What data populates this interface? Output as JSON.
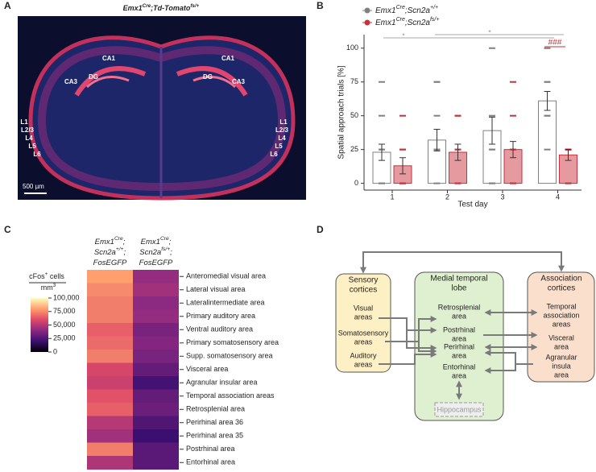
{
  "panel_a": {
    "letter": "A",
    "title": [
      "Emx1",
      "Cre",
      ";Td-Tomato",
      "fs/+"
    ],
    "labels": [
      "CA1",
      "CA1",
      "DG",
      "DG",
      "CA3",
      "CA3",
      "L1",
      "L2/3",
      "L4",
      "L5",
      "L6",
      "L1",
      "L2/3",
      "L4",
      "L5",
      "L6"
    ],
    "scale_bar": "500 µm"
  },
  "chart_data": [
    {
      "panel": "B",
      "type": "bar",
      "x_label": "Test day",
      "y_label": "Spatial approach trials [%]",
      "categories": [
        "1",
        "2",
        "3",
        "4"
      ],
      "ylim": [
        -5,
        110
      ],
      "yticks": [
        0,
        25,
        50,
        75,
        100
      ],
      "series": [
        {
          "name": [
            "Emx1",
            "Cre",
            ";Scn2a",
            "+/+"
          ],
          "color": "#808080",
          "fill": "#ffffff",
          "values": [
            23,
            32,
            39,
            61
          ],
          "errors": [
            6,
            8,
            10,
            7
          ],
          "points": [
            [
              0,
              25,
              25,
              50,
              75,
              0
            ],
            [
              0,
              25,
              50,
              75,
              75,
              25
            ],
            [
              0,
              25,
              25,
              50,
              100,
              0
            ],
            [
              25,
              50,
              50,
              75,
              75,
              100
            ]
          ]
        },
        {
          "name": [
            "Emx1",
            "Cre",
            ";Scn2a",
            "fs/+"
          ],
          "color": "#c8323c",
          "fill": "#e59aa0",
          "values": [
            13,
            23,
            25,
            21
          ],
          "errors": [
            6,
            6,
            6,
            4
          ],
          "points": [
            [
              0,
              0,
              0,
              25,
              25,
              50
            ],
            [
              0,
              25,
              25,
              50,
              50,
              0
            ],
            [
              0,
              25,
              25,
              50,
              75,
              0
            ],
            [
              0,
              25,
              25,
              25,
              0,
              25
            ]
          ]
        }
      ],
      "annotations": [
        "*",
        "*",
        "###"
      ]
    },
    {
      "panel": "C",
      "type": "heatmap",
      "columns": [
        [
          [
            "Emx1",
            "Cre",
            ";"
          ],
          [
            "Scn2a",
            "+/+",
            ";"
          ],
          [
            "FosEGFP"
          ]
        ],
        [
          [
            "Emx1",
            "Cre",
            ";"
          ],
          [
            "Scn2a",
            "fs/+",
            ";"
          ],
          [
            "FosEGFP"
          ]
        ]
      ],
      "rows": [
        "Anteromedial visual area",
        "Lateral visual area",
        "Lateralintermediate area",
        "Primary auditory area",
        "Ventral auditory area",
        "Primary somatosensory area",
        "Supp. somatosensory area",
        "Visceral area",
        "Agranular insular area",
        "Temporal association areas",
        "Retrosplenial area",
        "Perirhinal area 36",
        "Perirhinal area 35",
        "Postrhinal area",
        "Entorhinal area"
      ],
      "values": [
        [
          80000,
          42000
        ],
        [
          75000,
          45000
        ],
        [
          72000,
          40000
        ],
        [
          72000,
          42000
        ],
        [
          65000,
          35000
        ],
        [
          68000,
          38000
        ],
        [
          72000,
          35000
        ],
        [
          58000,
          30000
        ],
        [
          55000,
          22000
        ],
        [
          62000,
          30000
        ],
        [
          65000,
          32000
        ],
        [
          50000,
          25000
        ],
        [
          45000,
          20000
        ],
        [
          72000,
          28000
        ],
        [
          48000,
          28000
        ]
      ],
      "colorbar_title": [
        [
          "cFos",
          "+",
          " cells"
        ],
        [
          "mm",
          "3"
        ]
      ],
      "colormap": [
        "#000004",
        "#3b0f70",
        "#8c2981",
        "#de4968",
        "#fe9f6d",
        "#fcfdbf"
      ],
      "zlim": [
        0,
        100000
      ],
      "zticks": [
        {
          "value": 100000,
          "label": "100,000"
        },
        {
          "value": 75000,
          "label": "75,000"
        },
        {
          "value": 50000,
          "label": "50,000"
        },
        {
          "value": 25000,
          "label": "25,000"
        },
        0
      ]
    }
  ],
  "panel_d": {
    "letter": "D",
    "groups": [
      {
        "title": [
          "Sensory",
          "cortices"
        ],
        "items": [
          [
            "Visual",
            "areas"
          ],
          [
            "Somatosensory",
            "areas"
          ],
          [
            "Auditory",
            "areas"
          ]
        ]
      },
      {
        "title": [
          "Medial temporal",
          "lobe"
        ],
        "items": [
          [
            "Retrosplenial",
            "area"
          ],
          [
            "Postrhinal",
            "area"
          ],
          [
            "Perirhinal",
            "area"
          ],
          [
            "Entorhinal",
            "area"
          ],
          [
            "Hippocampus"
          ]
        ]
      },
      {
        "title": [
          "Association",
          "cortices"
        ],
        "items": [
          [
            "Temporal",
            "association",
            "areas"
          ],
          [
            "Visceral",
            "area"
          ],
          [
            "Agranular",
            "insula",
            "area"
          ]
        ]
      }
    ]
  }
}
